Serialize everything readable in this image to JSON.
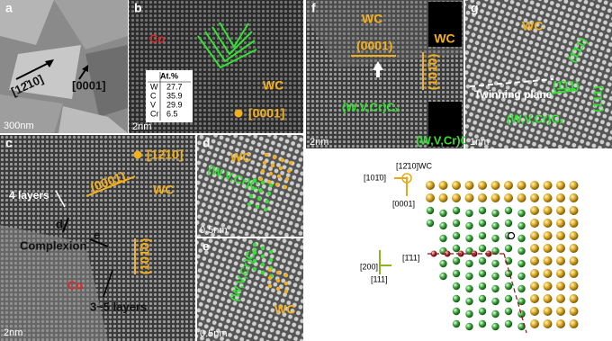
{
  "a": {
    "label": "a",
    "scale": "300nm",
    "dir_in_plane": "[12̄10]",
    "dir_normal": "[0001]"
  },
  "b": {
    "label": "b",
    "co": "Co",
    "wc": "WC",
    "plane": "[0001]",
    "scale": "2nm",
    "table": {
      "header": "At.%",
      "rows": [
        [
          "W",
          27.7
        ],
        [
          "C",
          35.9
        ],
        [
          "V",
          29.9
        ],
        [
          "Cr",
          6.5
        ]
      ]
    }
  },
  "c": {
    "label": "c",
    "zone": "[12̄10]",
    "layers_top": "4 layers",
    "plane_basal": "(0001)",
    "wc": "WC",
    "arrow_d": "d",
    "arrow_e": "e",
    "complexion": "Complexion",
    "plane_prism": "(101̄0)",
    "co": "Co",
    "layers_bottom": "3~5 layers",
    "scale": "2nm"
  },
  "d": {
    "label": "d",
    "wc": "WC",
    "carbide": "(W,V,Cr)Cₓ",
    "scale": "0.5nm"
  },
  "e": {
    "label": "e",
    "wc": "WC",
    "carbide": "(W,V,Cr)Cₓ",
    "scale": "0.5nm"
  },
  "f": {
    "label": "f",
    "wc": "WC",
    "basal": "(0001)",
    "prism": "(101̄0)",
    "carbide": "(W,V,Cr)Cₓ",
    "scale": "2nm",
    "fft_top": "WC",
    "fft_bottom": "(W,V,Cr)Cₓ"
  },
  "g": {
    "label": "g",
    "wc": "WC",
    "twin": "Twinning plane",
    "plane": "(1̄11)",
    "plane_inclined": "(1̄11)",
    "carbide": "(W,V,Cr)Cₓ",
    "scale": "1nm"
  },
  "schematic": {
    "zone": "[12̄10]WC",
    "wc_prism": "[101̄0]",
    "wc_basal": "[0001]",
    "fcc_inclined": "[1̄11]",
    "fcc_200": "[200]",
    "fcc_111": "[111]"
  }
}
